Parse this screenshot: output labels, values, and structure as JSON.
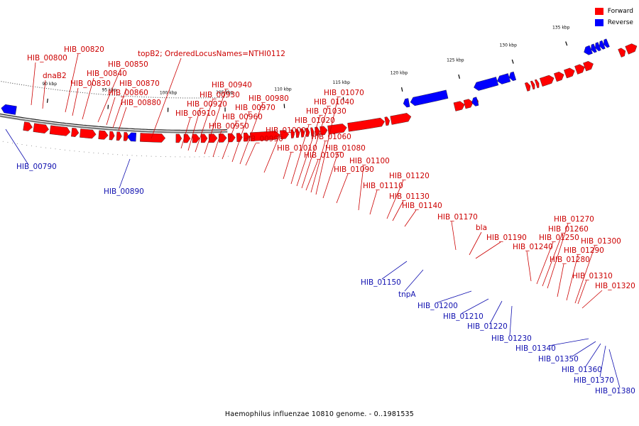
{
  "caption": "Haemophilus influenzae 10810 genome. - 0..1981535",
  "legend": [
    {
      "label": "Forward",
      "color": "#ff0000"
    },
    {
      "label": "Reverse",
      "color": "#0000ff"
    }
  ],
  "colors": {
    "forward": "#ff0000",
    "forward_label": "#cc0000",
    "reverse": "#0000ff",
    "reverse_label": "#1010b0",
    "backbone": "#777777"
  },
  "ticks": [
    "90 kbp",
    "95 kbp",
    "100 kbp",
    "105 kbp",
    "110 kbp",
    "115 kbp",
    "120 kbp",
    "125 kbp",
    "130 kbp",
    "135 kbp"
  ],
  "forward_genes": [
    "HIB_00800",
    "dnaB2",
    "HIB_00820",
    "HIB_00830",
    "HIB_00840",
    "HIB_00850",
    "HIB_00860",
    "HIB_00870",
    "HIB_00880",
    "topB2; OrderedLocusNames=NTHI0112",
    "HIB_00910",
    "HIB_00920",
    "HIB_00930",
    "HIB_00940",
    "HIB_00950",
    "HIB_00960",
    "HIB_00970",
    "HIB_00980",
    "HIB_00990",
    "HIB_01000",
    "HIB_01010",
    "HIB_01020",
    "HIB_01030",
    "HIB_01040",
    "HIB_01050",
    "HIB_01060",
    "HIB_01070",
    "HIB_01080",
    "HIB_01090",
    "HIB_01100",
    "HIB_01110",
    "HIB_01120",
    "HIB_01130",
    "HIB_01140",
    "HIB_01170",
    "bla",
    "HIB_01190",
    "HIB_01240",
    "HIB_01250",
    "HIB_01260",
    "HIB_01270",
    "HIB_01280",
    "HIB_01290",
    "HIB_01300",
    "HIB_01310",
    "HIB_01320"
  ],
  "reverse_genes": [
    "HIB_00790",
    "HIB_00890",
    "HIB_01150",
    "tnpA",
    "HIB_01200",
    "HIB_01210",
    "HIB_01220",
    "HIB_01230",
    "HIB_01340",
    "HIB_01350",
    "HIB_01360",
    "HIB_01370",
    "HIB_01380"
  ]
}
